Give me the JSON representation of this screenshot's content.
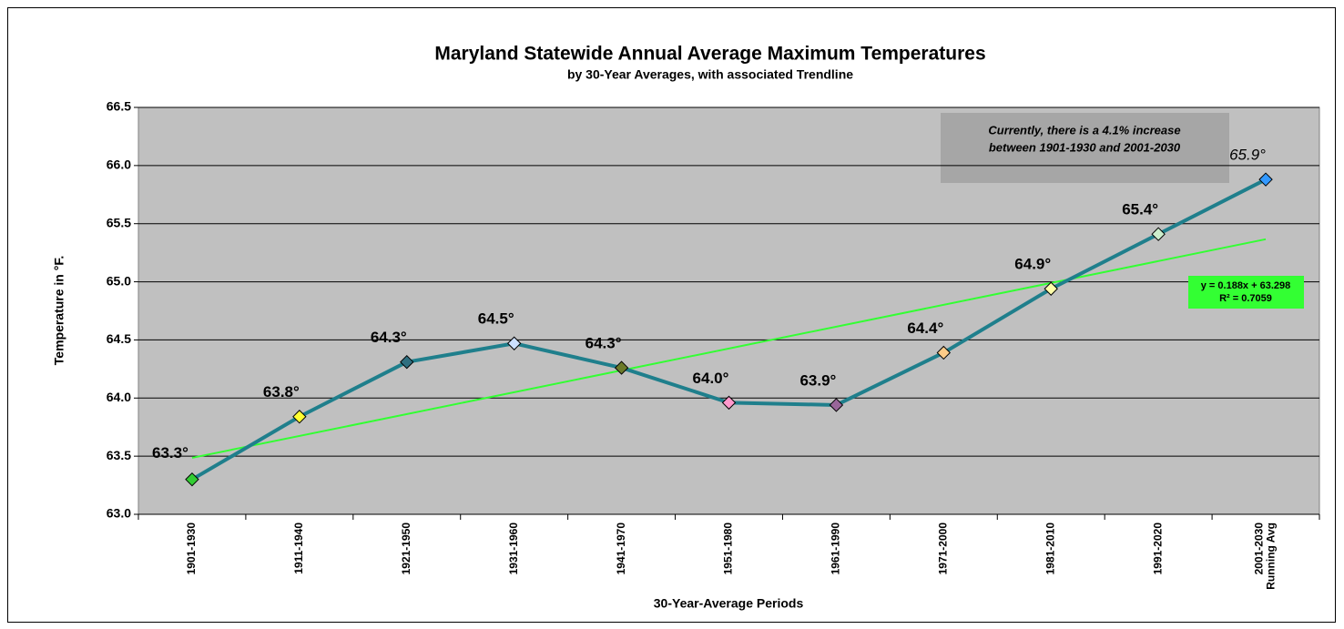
{
  "chart_data": {
    "type": "line",
    "title": "Maryland Statewide Annual Average Maximum Temperatures",
    "subtitle": "by 30-Year Averages, with associated Trendline",
    "x_label": "30-Year-Average Periods",
    "y_label": "Temperature in °F.",
    "categories": [
      "1901-1930",
      "1911-1940",
      "1921-1950",
      "1931-1960",
      "1941-1970",
      "1951-1980",
      "1961-1990",
      "1971-2000",
      "1981-2010",
      "1991-2020",
      [
        "2001-2030",
        "Running Avg"
      ]
    ],
    "series": [
      {
        "color": "#1f7f8c",
        "values": [
          63.3,
          63.84,
          64.31,
          64.47,
          64.26,
          63.96,
          63.94,
          64.39,
          64.94,
          65.41,
          65.88
        ],
        "value_labels": [
          "63.3°",
          "63.8°",
          "64.3°",
          "64.5°",
          "64.3°",
          "64.0°",
          "63.9°",
          "64.4°",
          "64.9°",
          "65.4°",
          "65.9°"
        ],
        "marker_colors": [
          "#33cc33",
          "#ffff33",
          "#2f6f80",
          "#cce0ff",
          "#6b7a2a",
          "#ff99cc",
          "#996699",
          "#ffcc88",
          "#ffffaa",
          "#cceecc",
          "#3399ff"
        ]
      }
    ],
    "trendline": {
      "slope": 0.188,
      "intercept": 63.298,
      "color": "#33ff33",
      "equation": "y = 0.188x + 63.298",
      "r2": "R² = 0.7059"
    },
    "annotation": [
      "Currently, there is a 4.1% increase",
      "between 1901-1930 and 2001-2030"
    ],
    "ylim": [
      63,
      66.5
    ],
    "yticks": [
      {
        "value": 63,
        "label": "63.0"
      },
      63.5,
      {
        "value": 64,
        "label": "64.0"
      },
      64.5,
      {
        "value": 65,
        "label": "65.0"
      },
      65.5,
      {
        "value": 66,
        "label": "66.0"
      },
      66.5
    ],
    "grid": true
  }
}
